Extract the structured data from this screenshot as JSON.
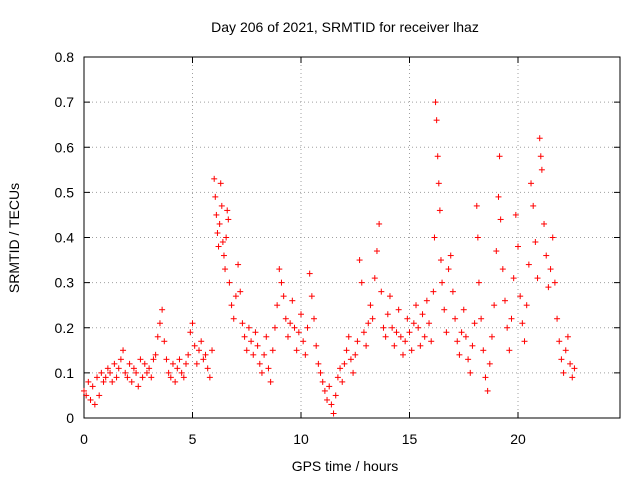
{
  "chart_data": {
    "type": "scatter",
    "title": "Day 206 of 2021, SRMTID for receiver lhaz",
    "xlabel": "GPS time / hours",
    "ylabel": "SRMTID / TECUs",
    "xlim": [
      0,
      24.7
    ],
    "ylim": [
      0,
      0.8
    ],
    "x_ticks": [
      0,
      5,
      10,
      15,
      20
    ],
    "x_tick_labels": [
      "0",
      "5",
      "10",
      "15",
      "20"
    ],
    "y_ticks": [
      0,
      0.1,
      0.2,
      0.3,
      0.4,
      0.5,
      0.6,
      0.7,
      0.8
    ],
    "y_tick_labels": [
      "0",
      "0.1",
      "0.2",
      "0.3",
      "0.4",
      "0.5",
      "0.6",
      "0.7",
      "0.8"
    ],
    "grid": true,
    "marker": "+",
    "marker_color": "#ff0000",
    "series": [
      {
        "name": "SRMTID",
        "points": [
          [
            0.0,
            0.06
          ],
          [
            0.1,
            0.05
          ],
          [
            0.2,
            0.08
          ],
          [
            0.3,
            0.04
          ],
          [
            0.4,
            0.07
          ],
          [
            0.5,
            0.03
          ],
          [
            0.6,
            0.09
          ],
          [
            0.7,
            0.05
          ],
          [
            0.8,
            0.1
          ],
          [
            0.9,
            0.08
          ],
          [
            1.0,
            0.09
          ],
          [
            1.1,
            0.11
          ],
          [
            1.2,
            0.1
          ],
          [
            1.3,
            0.08
          ],
          [
            1.4,
            0.12
          ],
          [
            1.5,
            0.09
          ],
          [
            1.6,
            0.11
          ],
          [
            1.7,
            0.13
          ],
          [
            1.8,
            0.15
          ],
          [
            1.9,
            0.1
          ],
          [
            2.0,
            0.09
          ],
          [
            2.1,
            0.12
          ],
          [
            2.2,
            0.08
          ],
          [
            2.3,
            0.11
          ],
          [
            2.4,
            0.1
          ],
          [
            2.5,
            0.07
          ],
          [
            2.6,
            0.13
          ],
          [
            2.7,
            0.09
          ],
          [
            2.8,
            0.12
          ],
          [
            2.9,
            0.1
          ],
          [
            3.0,
            0.11
          ],
          [
            3.1,
            0.09
          ],
          [
            3.2,
            0.13
          ],
          [
            3.3,
            0.14
          ],
          [
            3.4,
            0.18
          ],
          [
            3.5,
            0.21
          ],
          [
            3.6,
            0.24
          ],
          [
            3.7,
            0.17
          ],
          [
            3.8,
            0.13
          ],
          [
            3.9,
            0.1
          ],
          [
            4.0,
            0.09
          ],
          [
            4.1,
            0.12
          ],
          [
            4.2,
            0.08
          ],
          [
            4.3,
            0.11
          ],
          [
            4.4,
            0.13
          ],
          [
            4.5,
            0.1
          ],
          [
            4.6,
            0.09
          ],
          [
            4.7,
            0.12
          ],
          [
            4.8,
            0.14
          ],
          [
            4.9,
            0.19
          ],
          [
            5.0,
            0.21
          ],
          [
            5.1,
            0.16
          ],
          [
            5.2,
            0.12
          ],
          [
            5.3,
            0.15
          ],
          [
            5.4,
            0.17
          ],
          [
            5.5,
            0.13
          ],
          [
            5.6,
            0.14
          ],
          [
            5.7,
            0.11
          ],
          [
            5.8,
            0.09
          ],
          [
            5.9,
            0.15
          ],
          [
            6.0,
            0.53
          ],
          [
            6.05,
            0.49
          ],
          [
            6.1,
            0.45
          ],
          [
            6.15,
            0.41
          ],
          [
            6.2,
            0.38
          ],
          [
            6.25,
            0.43
          ],
          [
            6.3,
            0.52
          ],
          [
            6.35,
            0.47
          ],
          [
            6.4,
            0.39
          ],
          [
            6.45,
            0.36
          ],
          [
            6.5,
            0.33
          ],
          [
            6.55,
            0.4
          ],
          [
            6.6,
            0.46
          ],
          [
            6.65,
            0.44
          ],
          [
            6.7,
            0.3
          ],
          [
            6.8,
            0.25
          ],
          [
            6.9,
            0.22
          ],
          [
            7.0,
            0.27
          ],
          [
            7.1,
            0.34
          ],
          [
            7.2,
            0.28
          ],
          [
            7.3,
            0.21
          ],
          [
            7.4,
            0.18
          ],
          [
            7.5,
            0.15
          ],
          [
            7.6,
            0.2
          ],
          [
            7.7,
            0.17
          ],
          [
            7.8,
            0.14
          ],
          [
            7.9,
            0.19
          ],
          [
            8.0,
            0.16
          ],
          [
            8.1,
            0.12
          ],
          [
            8.2,
            0.1
          ],
          [
            8.3,
            0.14
          ],
          [
            8.4,
            0.18
          ],
          [
            8.5,
            0.11
          ],
          [
            8.6,
            0.08
          ],
          [
            8.7,
            0.15
          ],
          [
            8.8,
            0.2
          ],
          [
            8.9,
            0.25
          ],
          [
            9.0,
            0.33
          ],
          [
            9.1,
            0.3
          ],
          [
            9.2,
            0.27
          ],
          [
            9.3,
            0.22
          ],
          [
            9.4,
            0.18
          ],
          [
            9.5,
            0.21
          ],
          [
            9.6,
            0.26
          ],
          [
            9.7,
            0.2
          ],
          [
            9.8,
            0.15
          ],
          [
            9.9,
            0.19
          ],
          [
            10.0,
            0.23
          ],
          [
            10.1,
            0.17
          ],
          [
            10.2,
            0.14
          ],
          [
            10.3,
            0.2
          ],
          [
            10.4,
            0.32
          ],
          [
            10.5,
            0.27
          ],
          [
            10.6,
            0.22
          ],
          [
            10.7,
            0.16
          ],
          [
            10.8,
            0.12
          ],
          [
            10.9,
            0.1
          ],
          [
            11.0,
            0.08
          ],
          [
            11.1,
            0.06
          ],
          [
            11.2,
            0.04
          ],
          [
            11.3,
            0.07
          ],
          [
            11.4,
            0.03
          ],
          [
            11.5,
            0.01
          ],
          [
            11.6,
            0.05
          ],
          [
            11.7,
            0.09
          ],
          [
            11.8,
            0.11
          ],
          [
            11.9,
            0.08
          ],
          [
            12.0,
            0.12
          ],
          [
            12.1,
            0.15
          ],
          [
            12.2,
            0.18
          ],
          [
            12.3,
            0.13
          ],
          [
            12.4,
            0.1
          ],
          [
            12.5,
            0.14
          ],
          [
            12.6,
            0.17
          ],
          [
            12.7,
            0.35
          ],
          [
            12.8,
            0.3
          ],
          [
            12.9,
            0.19
          ],
          [
            13.0,
            0.16
          ],
          [
            13.1,
            0.21
          ],
          [
            13.2,
            0.25
          ],
          [
            13.3,
            0.22
          ],
          [
            13.4,
            0.31
          ],
          [
            13.5,
            0.37
          ],
          [
            13.6,
            0.43
          ],
          [
            13.7,
            0.28
          ],
          [
            13.8,
            0.2
          ],
          [
            13.9,
            0.18
          ],
          [
            14.0,
            0.23
          ],
          [
            14.1,
            0.27
          ],
          [
            14.2,
            0.2
          ],
          [
            14.3,
            0.16
          ],
          [
            14.4,
            0.19
          ],
          [
            14.5,
            0.24
          ],
          [
            14.6,
            0.18
          ],
          [
            14.7,
            0.14
          ],
          [
            14.8,
            0.17
          ],
          [
            14.9,
            0.22
          ],
          [
            15.0,
            0.19
          ],
          [
            15.1,
            0.15
          ],
          [
            15.2,
            0.21
          ],
          [
            15.3,
            0.25
          ],
          [
            15.4,
            0.2
          ],
          [
            15.5,
            0.16
          ],
          [
            15.6,
            0.23
          ],
          [
            15.7,
            0.18
          ],
          [
            15.8,
            0.26
          ],
          [
            15.9,
            0.21
          ],
          [
            16.0,
            0.17
          ],
          [
            16.1,
            0.28
          ],
          [
            16.15,
            0.4
          ],
          [
            16.2,
            0.7
          ],
          [
            16.25,
            0.66
          ],
          [
            16.3,
            0.58
          ],
          [
            16.35,
            0.52
          ],
          [
            16.4,
            0.46
          ],
          [
            16.45,
            0.35
          ],
          [
            16.5,
            0.3
          ],
          [
            16.6,
            0.24
          ],
          [
            16.7,
            0.19
          ],
          [
            16.8,
            0.33
          ],
          [
            16.9,
            0.36
          ],
          [
            17.0,
            0.28
          ],
          [
            17.1,
            0.22
          ],
          [
            17.2,
            0.17
          ],
          [
            17.3,
            0.14
          ],
          [
            17.4,
            0.19
          ],
          [
            17.5,
            0.24
          ],
          [
            17.6,
            0.18
          ],
          [
            17.7,
            0.13
          ],
          [
            17.8,
            0.1
          ],
          [
            17.9,
            0.16
          ],
          [
            18.0,
            0.21
          ],
          [
            18.1,
            0.47
          ],
          [
            18.15,
            0.4
          ],
          [
            18.2,
            0.3
          ],
          [
            18.3,
            0.22
          ],
          [
            18.4,
            0.15
          ],
          [
            18.5,
            0.09
          ],
          [
            18.6,
            0.06
          ],
          [
            18.7,
            0.12
          ],
          [
            18.8,
            0.18
          ],
          [
            18.9,
            0.25
          ],
          [
            19.0,
            0.37
          ],
          [
            19.1,
            0.49
          ],
          [
            19.15,
            0.58
          ],
          [
            19.2,
            0.44
          ],
          [
            19.3,
            0.33
          ],
          [
            19.4,
            0.26
          ],
          [
            19.5,
            0.2
          ],
          [
            19.6,
            0.15
          ],
          [
            19.7,
            0.22
          ],
          [
            19.8,
            0.31
          ],
          [
            19.9,
            0.45
          ],
          [
            20.0,
            0.38
          ],
          [
            20.1,
            0.27
          ],
          [
            20.2,
            0.21
          ],
          [
            20.3,
            0.17
          ],
          [
            20.4,
            0.25
          ],
          [
            20.5,
            0.34
          ],
          [
            20.6,
            0.52
          ],
          [
            20.7,
            0.47
          ],
          [
            20.8,
            0.39
          ],
          [
            20.9,
            0.31
          ],
          [
            21.0,
            0.62
          ],
          [
            21.05,
            0.58
          ],
          [
            21.1,
            0.55
          ],
          [
            21.2,
            0.43
          ],
          [
            21.3,
            0.36
          ],
          [
            21.4,
            0.29
          ],
          [
            21.5,
            0.33
          ],
          [
            21.6,
            0.4
          ],
          [
            21.7,
            0.3
          ],
          [
            21.8,
            0.22
          ],
          [
            21.9,
            0.17
          ],
          [
            22.0,
            0.13
          ],
          [
            22.1,
            0.1
          ],
          [
            22.2,
            0.15
          ],
          [
            22.3,
            0.18
          ],
          [
            22.4,
            0.12
          ],
          [
            22.5,
            0.09
          ],
          [
            22.6,
            0.11
          ]
        ]
      }
    ]
  }
}
